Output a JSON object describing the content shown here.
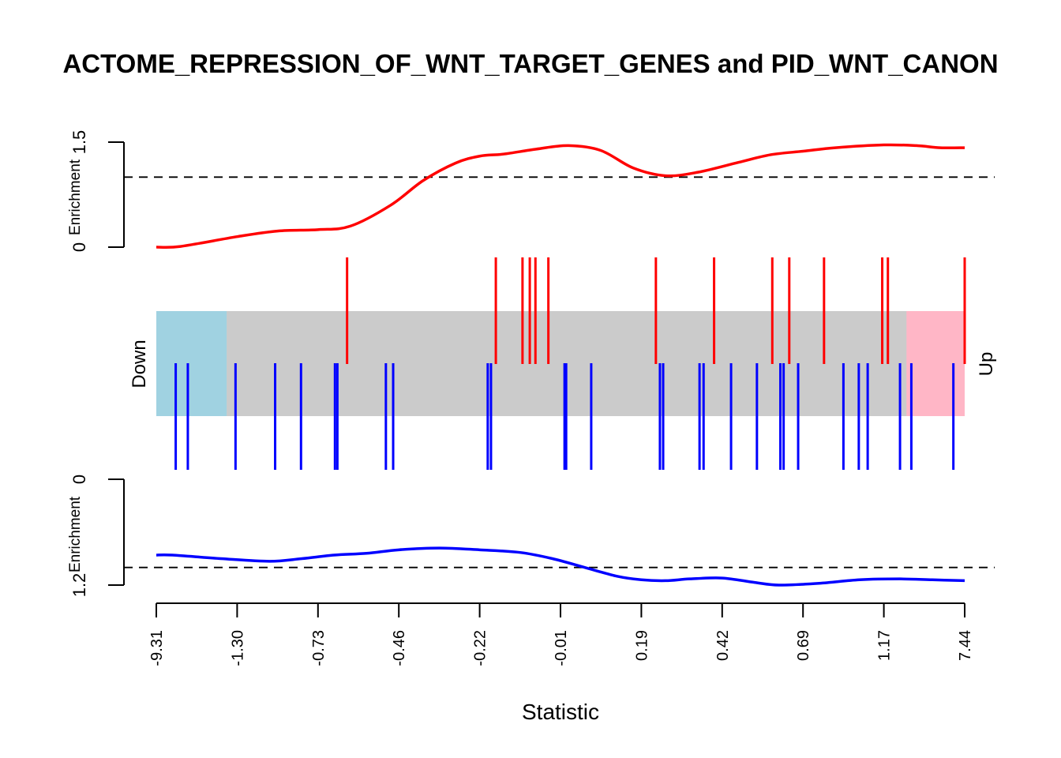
{
  "chart_data": {
    "type": "barcode",
    "title": "ACTOME_REPRESSION_OF_WNT_TARGET_GENES and PID_WNT_CANON",
    "xlabel": "Statistic",
    "x_tick_labels": [
      "-9.31",
      "-1.30",
      "-0.73",
      "-0.46",
      "-0.22",
      "-0.01",
      "0.19",
      "0.42",
      "0.69",
      "1.17",
      "7.44"
    ],
    "x_rank_range": [
      0,
      1
    ],
    "down_label": "Down",
    "up_label": "Up",
    "band_colors": {
      "down": "#a0d2e1",
      "middle": "#cbcbcb",
      "up": "#ffb6c6"
    },
    "band_down_end": 0.087,
    "band_up_start": 0.928,
    "up_panel": {
      "ylabel": "Enrichment",
      "yticks": [
        "0",
        "1.5"
      ],
      "ylim": [
        0,
        1.5
      ],
      "threshold": 1.0,
      "color": "#ff0000",
      "curve": [
        [
          0.0,
          0.0
        ],
        [
          0.03,
          0.01
        ],
        [
          0.1,
          0.15
        ],
        [
          0.15,
          0.23
        ],
        [
          0.2,
          0.25
        ],
        [
          0.24,
          0.3
        ],
        [
          0.29,
          0.6
        ],
        [
          0.33,
          0.95
        ],
        [
          0.37,
          1.2
        ],
        [
          0.4,
          1.3
        ],
        [
          0.43,
          1.33
        ],
        [
          0.47,
          1.4
        ],
        [
          0.51,
          1.45
        ],
        [
          0.55,
          1.38
        ],
        [
          0.59,
          1.13
        ],
        [
          0.63,
          1.02
        ],
        [
          0.67,
          1.07
        ],
        [
          0.72,
          1.21
        ],
        [
          0.76,
          1.32
        ],
        [
          0.8,
          1.37
        ],
        [
          0.84,
          1.42
        ],
        [
          0.9,
          1.46
        ],
        [
          0.94,
          1.45
        ],
        [
          0.97,
          1.42
        ],
        [
          1.0,
          1.42
        ]
      ],
      "barcodes": [
        0.236,
        0.42,
        0.453,
        0.462,
        0.469,
        0.485,
        0.618,
        0.69,
        0.762,
        0.783,
        0.826,
        0.898,
        0.905,
        1.0
      ]
    },
    "down_panel": {
      "ylabel": "Enrichment",
      "yticks": [
        "0",
        "1.2"
      ],
      "ylim": [
        0,
        1.2
      ],
      "threshold": 1.0,
      "color": "#0000ff",
      "curve": [
        [
          0.0,
          0.86
        ],
        [
          0.02,
          0.86
        ],
        [
          0.08,
          0.9
        ],
        [
          0.14,
          0.93
        ],
        [
          0.18,
          0.9
        ],
        [
          0.22,
          0.86
        ],
        [
          0.26,
          0.84
        ],
        [
          0.3,
          0.8
        ],
        [
          0.35,
          0.78
        ],
        [
          0.4,
          0.8
        ],
        [
          0.45,
          0.83
        ],
        [
          0.49,
          0.9
        ],
        [
          0.53,
          1.0
        ],
        [
          0.57,
          1.1
        ],
        [
          0.6,
          1.14
        ],
        [
          0.63,
          1.15
        ],
        [
          0.66,
          1.13
        ],
        [
          0.7,
          1.12
        ],
        [
          0.74,
          1.17
        ],
        [
          0.77,
          1.2
        ],
        [
          0.82,
          1.18
        ],
        [
          0.87,
          1.14
        ],
        [
          0.92,
          1.13
        ],
        [
          0.96,
          1.14
        ],
        [
          1.0,
          1.15
        ]
      ],
      "barcodes": [
        0.024,
        0.039,
        0.098,
        0.147,
        0.179,
        0.221,
        0.224,
        0.284,
        0.293,
        0.41,
        0.414,
        0.505,
        0.507,
        0.538,
        0.623,
        0.627,
        0.672,
        0.677,
        0.711,
        0.743,
        0.772,
        0.776,
        0.794,
        0.85,
        0.869,
        0.88,
        0.92,
        0.934,
        0.986
      ]
    }
  }
}
